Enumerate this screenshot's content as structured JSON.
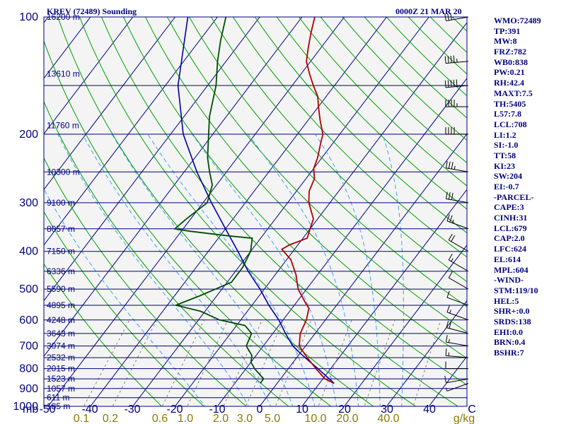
{
  "title": {
    "station": "KREV (72489) Sounding",
    "time": "0000Z 21 MAR 20"
  },
  "indices": [
    "WMO:72489",
    "TP:391",
    "MW:8",
    "FRZ:782",
    "WB0:838",
    "PW:0.21",
    "RH:42.4",
    "MAXT:7.5",
    "TH:5405",
    "L57:7.8",
    "LCL:708",
    "LI:1.2",
    "SI:-1.0",
    "TT:58",
    "KI:23",
    "SW:204",
    "EI:-0.7",
    "-PARCEL-",
    "CAPE:3",
    "CINH:31",
    "LCL:679",
    "CAP:2.0",
    "LFC:624",
    "EL:614",
    "MPL:604",
    "-WIND-",
    "STM:119/10",
    "HEL:5",
    "SHR+:0.0",
    "SRDS:138",
    "EHI:0.0",
    "BRN:0.4",
    "BSHR:7"
  ],
  "chart_data": {
    "type": "skew-t",
    "pressure_labels": [
      "100",
      "200",
      "300",
      "400",
      "500",
      "600",
      "700",
      "800",
      "900",
      "1000"
    ],
    "pressure_axis_unit": "mb",
    "temperature_labels": [
      "-50",
      "-40",
      "-30",
      "-20",
      "-10",
      "0",
      "10",
      "20",
      "30",
      "40",
      "C"
    ],
    "mixing_ratio_labels": [
      "0.1",
      "0.2",
      "0.6",
      "1.0",
      "2.0",
      "3.0",
      "5.0",
      "10.0",
      "20.0",
      "40.0",
      "g/kg"
    ],
    "height_labels": [
      {
        "p": 100,
        "label": "16200 m"
      },
      {
        "p": 140,
        "label": "13610 m"
      },
      {
        "p": 190,
        "label": "11760 m"
      },
      {
        "p": 250,
        "label": "10300 m"
      },
      {
        "p": 300,
        "label": "9100 m"
      },
      {
        "p": 350,
        "label": "8057 m"
      },
      {
        "p": 400,
        "label": "7150 m"
      },
      {
        "p": 450,
        "label": "6336 m"
      },
      {
        "p": 500,
        "label": "5590 m"
      },
      {
        "p": 550,
        "label": "4895 m"
      },
      {
        "p": 600,
        "label": "4248 m"
      },
      {
        "p": 650,
        "label": "3643 m"
      },
      {
        "p": 700,
        "label": "3074 m"
      },
      {
        "p": 750,
        "label": "2532 m"
      },
      {
        "p": 800,
        "label": "2015 m"
      },
      {
        "p": 850,
        "label": "1523 m"
      },
      {
        "p": 900,
        "label": "1057 m"
      },
      {
        "p": 950,
        "label": "611 m"
      },
      {
        "p": 1000,
        "label": "185 m"
      }
    ],
    "temperature_profile": [
      [
        873,
        13.5
      ],
      [
        850,
        10.5
      ],
      [
        800,
        6.5
      ],
      [
        750,
        2.5
      ],
      [
        700,
        -1.5
      ],
      [
        650,
        -3.5
      ],
      [
        600,
        -4.5
      ],
      [
        560,
        -6
      ],
      [
        540,
        -8
      ],
      [
        500,
        -12
      ],
      [
        460,
        -15
      ],
      [
        420,
        -19
      ],
      [
        395,
        -23
      ],
      [
        385,
        -22
      ],
      [
        370,
        -19
      ],
      [
        350,
        -20
      ],
      [
        330,
        -21
      ],
      [
        300,
        -25
      ],
      [
        280,
        -27
      ],
      [
        260,
        -28
      ],
      [
        245,
        -30
      ],
      [
        230,
        -31
      ],
      [
        210,
        -33
      ],
      [
        200,
        -34
      ],
      [
        185,
        -37
      ],
      [
        170,
        -40
      ],
      [
        160,
        -42
      ],
      [
        150,
        -45
      ],
      [
        140,
        -48
      ],
      [
        130,
        -51
      ],
      [
        120,
        -53
      ],
      [
        110,
        -55
      ],
      [
        100,
        -57
      ]
    ],
    "dewpoint_profile": [
      [
        873,
        -4
      ],
      [
        850,
        -4
      ],
      [
        800,
        -8
      ],
      [
        770,
        -10
      ],
      [
        740,
        -11
      ],
      [
        700,
        -14
      ],
      [
        650,
        -15
      ],
      [
        620,
        -18
      ],
      [
        600,
        -25
      ],
      [
        570,
        -31
      ],
      [
        550,
        -38
      ],
      [
        520,
        -34
      ],
      [
        480,
        -29
      ],
      [
        440,
        -29
      ],
      [
        400,
        -30
      ],
      [
        370,
        -32
      ],
      [
        365,
        -38
      ],
      [
        355,
        -48
      ],
      [
        350,
        -52
      ],
      [
        330,
        -51
      ],
      [
        300,
        -49
      ],
      [
        270,
        -51
      ],
      [
        250,
        -54
      ],
      [
        230,
        -57
      ],
      [
        200,
        -61
      ],
      [
        180,
        -64
      ],
      [
        150,
        -68
      ],
      [
        130,
        -72
      ],
      [
        115,
        -75
      ],
      [
        100,
        -78
      ]
    ],
    "parcel_profile": [
      [
        873,
        13.5
      ],
      [
        850,
        11.5
      ],
      [
        800,
        7
      ],
      [
        760,
        3
      ],
      [
        730,
        0
      ],
      [
        700,
        -3
      ],
      [
        650,
        -7
      ],
      [
        600,
        -11
      ],
      [
        550,
        -16
      ],
      [
        500,
        -21
      ],
      [
        450,
        -27
      ],
      [
        400,
        -33
      ],
      [
        350,
        -40
      ],
      [
        300,
        -48
      ],
      [
        250,
        -57
      ],
      [
        200,
        -67
      ],
      [
        150,
        -77
      ],
      [
        100,
        -87
      ]
    ],
    "wind_barbs": [
      {
        "p": 873,
        "dir": 250,
        "spd": 5
      },
      {
        "p": 850,
        "dir": 260,
        "spd": 10
      },
      {
        "p": 800,
        "dir": 270,
        "spd": 10
      },
      {
        "p": 750,
        "dir": 275,
        "spd": 15
      },
      {
        "p": 700,
        "dir": 280,
        "spd": 15
      },
      {
        "p": 650,
        "dir": 285,
        "spd": 20
      },
      {
        "p": 600,
        "dir": 290,
        "spd": 15
      },
      {
        "p": 550,
        "dir": 290,
        "spd": 10
      },
      {
        "p": 500,
        "dir": 300,
        "spd": 10
      },
      {
        "p": 450,
        "dir": 300,
        "spd": 15
      },
      {
        "p": 400,
        "dir": 300,
        "spd": 20
      },
      {
        "p": 350,
        "dir": 290,
        "spd": 25
      },
      {
        "p": 300,
        "dir": 280,
        "spd": 30
      },
      {
        "p": 250,
        "dir": 280,
        "spd": 35
      },
      {
        "p": 200,
        "dir": 270,
        "spd": 40
      },
      {
        "p": 170,
        "dir": 270,
        "spd": 45
      },
      {
        "p": 150,
        "dir": 265,
        "spd": 50
      },
      {
        "p": 130,
        "dir": 265,
        "spd": 45
      },
      {
        "p": 100,
        "dir": 260,
        "spd": 30
      }
    ],
    "colors": {
      "isobar": "#000080",
      "isotherm": "#000080",
      "dry_adiabat": "#00a000",
      "moist_adiabat": "#40a0ff",
      "mixing_ratio": "#808080",
      "temperature": "#b00000",
      "dewpoint": "#004d00",
      "parcel": "#0000a0",
      "barb": "#000000"
    }
  }
}
